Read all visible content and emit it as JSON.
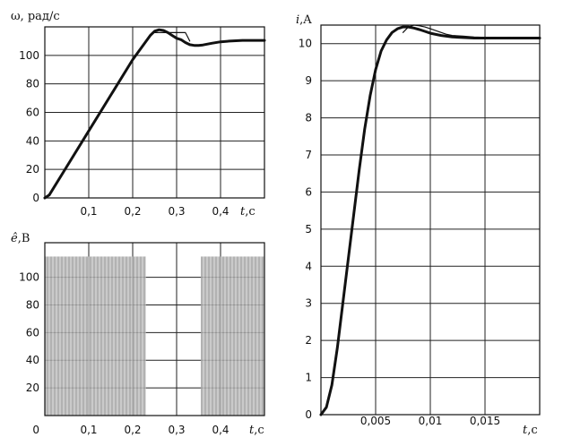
{
  "chart_data": [
    {
      "id": "omega",
      "type": "line",
      "ylabel": "ω, рад/с",
      "xlabel_var": "t",
      "xlabel_unit": ",с",
      "xlim": [
        0,
        0.5
      ],
      "ylim": [
        0,
        120
      ],
      "x_ticks": [
        0.1,
        0.2,
        0.3,
        0.4
      ],
      "x_tick_labels": [
        "0,1",
        "0,2",
        "0,3",
        "0,4"
      ],
      "y_ticks": [
        0,
        20,
        40,
        60,
        80,
        100
      ],
      "y_tick_labels": [
        "0",
        "20",
        "40",
        "60",
        "80",
        "100"
      ],
      "grid": true,
      "series": [
        {
          "style": "thick",
          "x": [
            0,
            0.01,
            0.05,
            0.1,
            0.15,
            0.2,
            0.24,
            0.25,
            0.26,
            0.27,
            0.28,
            0.29,
            0.3,
            0.31,
            0.32,
            0.33,
            0.34,
            0.35,
            0.36,
            0.38,
            0.4,
            0.42,
            0.45,
            0.48,
            0.5
          ],
          "y": [
            0,
            2,
            22,
            47,
            72,
            97,
            114,
            117,
            118,
            117.5,
            116,
            114,
            112,
            111,
            109,
            107.5,
            107,
            107,
            107.3,
            108.5,
            109.5,
            110,
            110.5,
            110.5,
            110.5
          ]
        },
        {
          "style": "thin",
          "x": [
            0.25,
            0.27,
            0.29,
            0.31,
            0.32,
            0.325,
            0.33
          ],
          "y": [
            116,
            116,
            116,
            116,
            116,
            113,
            110
          ]
        }
      ]
    },
    {
      "id": "emf",
      "type": "area",
      "ylabel_var": "ê",
      "ylabel_unit": ",В",
      "xlabel_var": "t",
      "xlabel_unit": ",с",
      "xlim": [
        0,
        0.5
      ],
      "ylim": [
        0,
        125
      ],
      "x_ticks": [
        0.1,
        0.2,
        0.3,
        0.4
      ],
      "x_tick_labels": [
        "0,1",
        "0,2",
        "0,3",
        "0,4"
      ],
      "y_ticks": [
        20,
        40,
        60,
        80,
        100
      ],
      "y_tick_labels": [
        "20",
        "40",
        "60",
        "80",
        "100"
      ],
      "x0_label": "0",
      "grid": true,
      "bands": [
        {
          "x0": 0,
          "x1": 0.23,
          "y0": 0,
          "y1": 115
        },
        {
          "x0": 0.355,
          "x1": 0.5,
          "y0": 0,
          "y1": 115
        }
      ]
    },
    {
      "id": "current",
      "type": "line",
      "ylabel_var": "i",
      "ylabel_unit": ",A",
      "xlabel_var": "t",
      "xlabel_unit": ",с",
      "xlim": [
        0,
        0.02
      ],
      "ylim": [
        0,
        10.5
      ],
      "x_ticks": [
        0.005,
        0.01,
        0.015
      ],
      "x_tick_labels": [
        "0,005",
        "0,01",
        "0,015"
      ],
      "y_ticks": [
        0,
        1,
        2,
        3,
        4,
        5,
        6,
        7,
        8,
        9,
        10
      ],
      "y_tick_labels": [
        "0",
        "1",
        "2",
        "3",
        "4",
        "5",
        "6",
        "7",
        "8",
        "9",
        "10"
      ],
      "grid": true,
      "series": [
        {
          "style": "thick",
          "x": [
            0,
            0.0005,
            0.001,
            0.0015,
            0.002,
            0.0025,
            0.003,
            0.0035,
            0.004,
            0.0045,
            0.005,
            0.0055,
            0.006,
            0.0065,
            0.007,
            0.0075,
            0.008,
            0.0085,
            0.009,
            0.0095,
            0.01,
            0.011,
            0.012,
            0.014,
            0.016,
            0.018,
            0.02
          ],
          "y": [
            0,
            0.2,
            0.8,
            1.8,
            3.0,
            4.2,
            5.4,
            6.6,
            7.7,
            8.6,
            9.3,
            9.8,
            10.1,
            10.3,
            10.4,
            10.45,
            10.45,
            10.42,
            10.38,
            10.33,
            10.28,
            10.22,
            10.18,
            10.15,
            10.15,
            10.15,
            10.15
          ]
        },
        {
          "style": "thin",
          "x": [
            0.0075,
            0.008,
            0.0085,
            0.009,
            0.0095,
            0.01,
            0.0105,
            0.011,
            0.0115,
            0.012,
            0.013,
            0.014,
            0.015,
            0.016,
            0.017,
            0.018,
            0.019,
            0.02
          ],
          "y": [
            10.3,
            10.45,
            10.5,
            10.48,
            10.45,
            10.4,
            10.35,
            10.3,
            10.25,
            10.22,
            10.2,
            10.18,
            10.17,
            10.16,
            10.16,
            10.15,
            10.15,
            10.15
          ]
        }
      ]
    }
  ]
}
